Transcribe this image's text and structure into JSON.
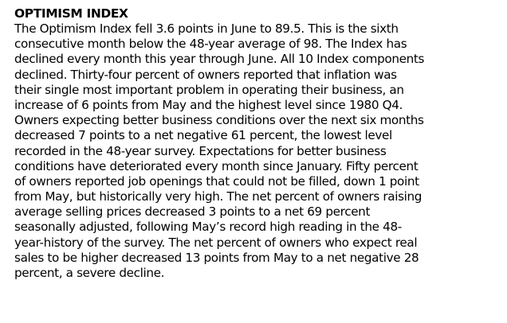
{
  "document": {
    "heading": "OPTIMISM INDEX",
    "paragraph_lines": [
      "The Optimism Index fell 3.6 points in June to 89.5. This is the sixth",
      "consecutive month below the 48-year average of 98. The Index has",
      "declined every month this year through June.  All 10 Index components",
      "declined. Thirty-four percent of owners reported that inflation was",
      "their single most important problem in operating their business, an",
      "increase of 6 points from May and the highest level since 1980 Q4.",
      "Owners expecting better business conditions over the next six months",
      "decreased 7 points to a net negative 61 percent, the lowest level",
      "recorded in the 48-year survey. Expectations for better business",
      "conditions have deteriorated every month since January. Fifty percent",
      "of owners reported job openings that could not be filled, down 1 point",
      "from May, but historically very high. The net percent of owners raising",
      "average selling prices decreased 3 points to a net 69 percent",
      "seasonally adjusted, following May’s record high reading in the 48-",
      "year-history of the survey. The net percent of owners who expect real",
      "sales to be higher decreased 13 points from May to a net negative 28",
      "percent, a severe decline."
    ]
  }
}
